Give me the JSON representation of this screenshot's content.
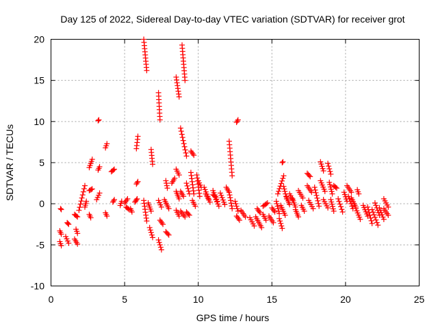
{
  "chart_data": {
    "type": "scatter",
    "title": "Day 125 of 2022, Sidereal Day-to-day VTEC variation (SDTVAR) for receiver grot",
    "xlabel": "GPS time / hours",
    "ylabel": "SDTVAR / TECUs",
    "xlim": [
      0,
      25
    ],
    "ylim": [
      -10,
      20
    ],
    "xticks": [
      "0",
      "5",
      "10",
      "15",
      "20",
      "25"
    ],
    "yticks": [
      "-10",
      "-5",
      "0",
      "5",
      "10",
      "15",
      "20"
    ],
    "grid": true,
    "marker": "plus",
    "marker_color": "#ff0000",
    "tracks": [
      {
        "t0": 0.6,
        "t1": 0.7,
        "v0": -4.6,
        "v1": -5.1
      },
      {
        "t0": 0.6,
        "t1": 0.7,
        "v0": -3.3,
        "v1": -3.7
      },
      {
        "t0": 0.65,
        "t1": 0.7,
        "v0": -0.6,
        "v1": -0.7
      },
      {
        "t0": 1.0,
        "t1": 1.2,
        "v0": -4.0,
        "v1": -4.8
      },
      {
        "t0": 1.1,
        "t1": 1.2,
        "v0": -2.3,
        "v1": -2.5
      },
      {
        "t0": 1.6,
        "t1": 1.8,
        "v0": -4.3,
        "v1": -4.9
      },
      {
        "t0": 1.7,
        "t1": 1.8,
        "v0": -3.1,
        "v1": -3.6
      },
      {
        "t0": 1.6,
        "t1": 1.8,
        "v0": -1.3,
        "v1": -1.6
      },
      {
        "t0": 1.9,
        "t1": 2.3,
        "v0": -0.8,
        "v1": 2.2
      },
      {
        "t0": 2.3,
        "t1": 2.4,
        "v0": -0.4,
        "v1": 0.3
      },
      {
        "t0": 2.6,
        "t1": 2.7,
        "v0": -1.3,
        "v1": -1.7
      },
      {
        "t0": 2.6,
        "t1": 2.8,
        "v0": 1.6,
        "v1": 1.8
      },
      {
        "t0": 2.6,
        "t1": 2.8,
        "v0": 4.4,
        "v1": 5.4
      },
      {
        "t0": 3.1,
        "t1": 3.3,
        "v0": 0.5,
        "v1": 1.3
      },
      {
        "t0": 3.2,
        "t1": 3.3,
        "v0": 4.1,
        "v1": 4.5
      },
      {
        "t0": 3.2,
        "t1": 3.25,
        "v0": 10.1,
        "v1": 10.2
      },
      {
        "t0": 3.7,
        "t1": 3.8,
        "v0": -1.1,
        "v1": -1.5
      },
      {
        "t0": 3.7,
        "t1": 3.8,
        "v0": 6.8,
        "v1": 7.3
      },
      {
        "t0": 4.1,
        "t1": 4.3,
        "v0": 3.9,
        "v1": 4.2
      },
      {
        "t0": 4.2,
        "t1": 4.3,
        "v0": 0.2,
        "v1": 0.5
      },
      {
        "t0": 4.7,
        "t1": 4.8,
        "v0": -0.2,
        "v1": 0.3
      },
      {
        "t0": 5.0,
        "t1": 5.2,
        "v0": 0.1,
        "v1": 0.6
      },
      {
        "t0": 5.1,
        "t1": 5.3,
        "v0": -0.4,
        "v1": -0.7
      },
      {
        "t0": 5.4,
        "t1": 5.5,
        "v0": -0.6,
        "v1": -1.0
      },
      {
        "t0": 5.8,
        "t1": 5.9,
        "v0": 6.7,
        "v1": 8.2
      },
      {
        "t0": 5.8,
        "t1": 5.9,
        "v0": 2.4,
        "v1": 2.7
      },
      {
        "t0": 5.7,
        "t1": 5.85,
        "v0": 0.2,
        "v1": 0.6
      },
      {
        "t0": 6.3,
        "t1": 6.5,
        "v0": 20.0,
        "v1": 16.2
      },
      {
        "t0": 6.3,
        "t1": 6.5,
        "v0": 0.4,
        "v1": -2.1
      },
      {
        "t0": 6.8,
        "t1": 6.9,
        "v0": 6.6,
        "v1": 4.8
      },
      {
        "t0": 6.7,
        "t1": 6.9,
        "v0": -2.9,
        "v1": -4.1
      },
      {
        "t0": 6.6,
        "t1": 6.8,
        "v0": 0.1,
        "v1": -0.9
      },
      {
        "t0": 7.3,
        "t1": 7.4,
        "v0": 13.5,
        "v1": 10.2
      },
      {
        "t0": 7.3,
        "t1": 7.5,
        "v0": -4.4,
        "v1": -5.6
      },
      {
        "t0": 7.3,
        "t1": 7.5,
        "v0": 0.4,
        "v1": -0.4
      },
      {
        "t0": 7.4,
        "t1": 7.6,
        "v0": -2.0,
        "v1": -2.5
      },
      {
        "t0": 7.8,
        "t1": 7.9,
        "v0": 2.8,
        "v1": 1.9
      },
      {
        "t0": 7.8,
        "t1": 8.0,
        "v0": -3.4,
        "v1": -3.8
      },
      {
        "t0": 7.7,
        "t1": 8.0,
        "v0": 0.5,
        "v1": -0.6
      },
      {
        "t0": 8.2,
        "t1": 8.4,
        "v0": 2.5,
        "v1": 3.1
      },
      {
        "t0": 8.5,
        "t1": 8.7,
        "v0": 15.4,
        "v1": 13.0
      },
      {
        "t0": 8.5,
        "t1": 8.7,
        "v0": 4.2,
        "v1": 3.5
      },
      {
        "t0": 8.5,
        "t1": 8.7,
        "v0": 1.5,
        "v1": 0.6
      },
      {
        "t0": 8.5,
        "t1": 8.7,
        "v0": -0.8,
        "v1": -1.5
      },
      {
        "t0": 8.8,
        "t1": 9.2,
        "v0": 9.2,
        "v1": 5.8
      },
      {
        "t0": 8.9,
        "t1": 9.1,
        "v0": 19.3,
        "v1": 15.0
      },
      {
        "t0": 8.8,
        "t1": 9.0,
        "v0": 1.5,
        "v1": 0.9
      },
      {
        "t0": 8.8,
        "t1": 9.1,
        "v0": -0.9,
        "v1": -1.6
      },
      {
        "t0": 9.2,
        "t1": 9.4,
        "v0": 2.5,
        "v1": 1.2
      },
      {
        "t0": 9.2,
        "t1": 9.4,
        "v0": -1.0,
        "v1": -1.4
      },
      {
        "t0": 9.5,
        "t1": 9.7,
        "v0": 6.4,
        "v1": 5.9
      },
      {
        "t0": 9.5,
        "t1": 9.7,
        "v0": 3.8,
        "v1": 1.2
      },
      {
        "t0": 9.6,
        "t1": 9.8,
        "v0": 0.4,
        "v1": -0.3
      },
      {
        "t0": 9.9,
        "t1": 10.1,
        "v0": 3.5,
        "v1": 0.9
      },
      {
        "t0": 10.0,
        "t1": 10.2,
        "v0": 2.8,
        "v1": 2.0
      },
      {
        "t0": 10.4,
        "t1": 10.7,
        "v0": 2.0,
        "v1": 0.6
      },
      {
        "t0": 10.5,
        "t1": 10.8,
        "v0": 1.2,
        "v1": 0.2
      },
      {
        "t0": 11.0,
        "t1": 11.3,
        "v0": 1.6,
        "v1": 0.3
      },
      {
        "t0": 11.0,
        "t1": 11.2,
        "v0": 1.1,
        "v1": 0.8
      },
      {
        "t0": 11.2,
        "t1": 11.4,
        "v0": 0.5,
        "v1": -0.3
      },
      {
        "t0": 11.5,
        "t1": 11.8,
        "v0": 1.3,
        "v1": -0.1
      },
      {
        "t0": 11.9,
        "t1": 12.1,
        "v0": 2.0,
        "v1": 1.4
      },
      {
        "t0": 12.1,
        "t1": 12.3,
        "v0": 7.6,
        "v1": 3.4
      },
      {
        "t0": 12.1,
        "t1": 12.3,
        "v0": 1.4,
        "v1": -0.6
      },
      {
        "t0": 12.5,
        "t1": 12.7,
        "v0": 0.3,
        "v1": -0.9
      },
      {
        "t0": 12.6,
        "t1": 12.7,
        "v0": 9.9,
        "v1": 10.2
      },
      {
        "t0": 12.6,
        "t1": 12.8,
        "v0": -1.5,
        "v1": -2.0
      },
      {
        "t0": 12.9,
        "t1": 13.2,
        "v0": -0.8,
        "v1": -1.6
      },
      {
        "t0": 13.5,
        "t1": 13.8,
        "v0": -1.7,
        "v1": -2.7
      },
      {
        "t0": 13.9,
        "t1": 14.3,
        "v0": -1.6,
        "v1": -2.9
      },
      {
        "t0": 14.0,
        "t1": 14.2,
        "v0": -0.6,
        "v1": -1.1
      },
      {
        "t0": 14.4,
        "t1": 14.6,
        "v0": -1.3,
        "v1": -2.0
      },
      {
        "t0": 14.4,
        "t1": 14.7,
        "v0": -0.3,
        "v1": 0.1
      },
      {
        "t0": 14.8,
        "t1": 15.1,
        "v0": -1.5,
        "v1": -2.3
      },
      {
        "t0": 15.0,
        "t1": 15.2,
        "v0": -0.5,
        "v1": -1.0
      },
      {
        "t0": 15.3,
        "t1": 15.5,
        "v0": 0.3,
        "v1": -1.2
      },
      {
        "t0": 15.4,
        "t1": 15.8,
        "v0": 1.2,
        "v1": 3.4
      },
      {
        "t0": 15.5,
        "t1": 15.7,
        "v0": -1.8,
        "v1": -3.0
      },
      {
        "t0": 15.7,
        "t1": 15.75,
        "v0": 5.0,
        "v1": 5.1
      },
      {
        "t0": 15.6,
        "t1": 15.9,
        "v0": -0.2,
        "v1": -1.4
      },
      {
        "t0": 15.8,
        "t1": 16.0,
        "v0": 2.1,
        "v1": 0.6
      },
      {
        "t0": 16.0,
        "t1": 16.2,
        "v0": 0.8,
        "v1": -0.1
      },
      {
        "t0": 16.2,
        "t1": 16.4,
        "v0": 1.2,
        "v1": 0.5
      },
      {
        "t0": 16.4,
        "t1": 16.6,
        "v0": 0.6,
        "v1": -0.4
      },
      {
        "t0": 16.6,
        "t1": 16.8,
        "v0": -0.7,
        "v1": -1.6
      },
      {
        "t0": 16.8,
        "t1": 17.1,
        "v0": 1.6,
        "v1": 0.7
      },
      {
        "t0": 17.0,
        "t1": 17.2,
        "v0": -0.2,
        "v1": -0.9
      },
      {
        "t0": 17.4,
        "t1": 17.6,
        "v0": 3.7,
        "v1": 3.3
      },
      {
        "t0": 17.4,
        "t1": 17.7,
        "v0": 2.2,
        "v1": 1.4
      },
      {
        "t0": 17.5,
        "t1": 17.8,
        "v0": 0.4,
        "v1": -0.6
      },
      {
        "t0": 17.9,
        "t1": 18.2,
        "v0": 2.0,
        "v1": -0.3
      },
      {
        "t0": 18.3,
        "t1": 18.5,
        "v0": 5.1,
        "v1": 4.0
      },
      {
        "t0": 18.3,
        "t1": 18.6,
        "v0": 2.8,
        "v1": 1.5
      },
      {
        "t0": 18.5,
        "t1": 18.8,
        "v0": 0.5,
        "v1": -0.5
      },
      {
        "t0": 18.8,
        "t1": 19.0,
        "v0": 4.9,
        "v1": 3.6
      },
      {
        "t0": 18.9,
        "t1": 19.1,
        "v0": 2.6,
        "v1": 1.2
      },
      {
        "t0": 19.0,
        "t1": 19.2,
        "v0": 0.5,
        "v1": -0.9
      },
      {
        "t0": 19.2,
        "t1": 19.4,
        "v0": 2.2,
        "v1": 1.9
      },
      {
        "t0": 19.5,
        "t1": 19.8,
        "v0": 0.6,
        "v1": -1.0
      },
      {
        "t0": 19.9,
        "t1": 20.1,
        "v0": 1.4,
        "v1": 0.3
      },
      {
        "t0": 20.1,
        "t1": 20.4,
        "v0": 2.2,
        "v1": 1.4
      },
      {
        "t0": 20.2,
        "t1": 20.5,
        "v0": 0.9,
        "v1": -0.6
      },
      {
        "t0": 20.4,
        "t1": 20.7,
        "v0": 0.7,
        "v1": -0.4
      },
      {
        "t0": 20.8,
        "t1": 20.9,
        "v0": 1.7,
        "v1": 1.2
      },
      {
        "t0": 20.7,
        "t1": 21.0,
        "v0": -0.6,
        "v1": -1.9
      },
      {
        "t0": 21.2,
        "t1": 21.5,
        "v0": -0.2,
        "v1": -1.5
      },
      {
        "t0": 21.5,
        "t1": 21.8,
        "v0": -0.4,
        "v1": -2.4
      },
      {
        "t0": 21.8,
        "t1": 22.2,
        "v0": -0.7,
        "v1": -2.6
      },
      {
        "t0": 22.0,
        "t1": 22.3,
        "v0": 0.1,
        "v1": -1.4
      },
      {
        "t0": 22.3,
        "t1": 22.6,
        "v0": -0.5,
        "v1": -1.9
      },
      {
        "t0": 22.6,
        "t1": 22.9,
        "v0": 0.6,
        "v1": -0.4
      },
      {
        "t0": 22.6,
        "t1": 22.9,
        "v0": -0.6,
        "v1": -1.4
      }
    ]
  }
}
